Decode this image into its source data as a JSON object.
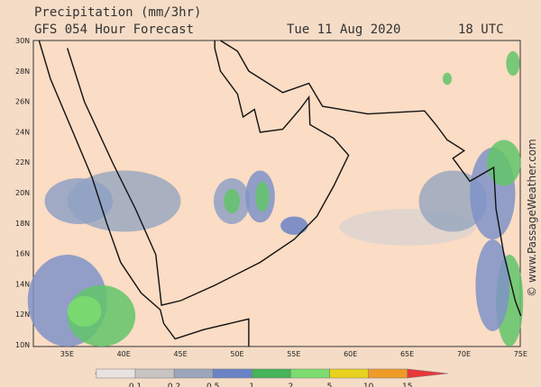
{
  "header": {
    "title": "Precipitation (mm/3hr)",
    "subtitle": "GFS 054 Hour Forecast",
    "date": "Tue 11 Aug 2020",
    "time": "18 UTC"
  },
  "map": {
    "lat_labels": [
      "30N",
      "28N",
      "26N",
      "24N",
      "22N",
      "20N",
      "18N",
      "16N",
      "14N",
      "12N",
      "10N"
    ],
    "lon_labels": [
      "35E",
      "40E",
      "45E",
      "50E",
      "55E",
      "60E",
      "65E",
      "70E",
      "75E"
    ]
  },
  "legend": {
    "labels": [
      "0.1",
      "0.2",
      "0.5",
      "1",
      "2",
      "5",
      "10",
      "15"
    ]
  },
  "watermark": "© www.PassageWeather.com"
}
